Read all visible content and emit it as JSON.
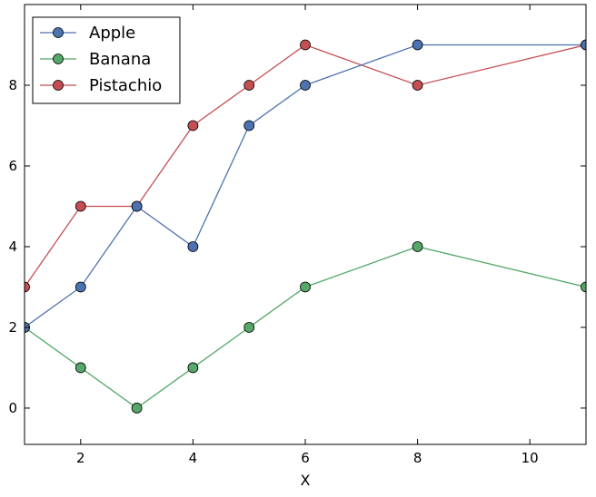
{
  "chart_data": {
    "type": "line",
    "title": "",
    "xlabel": "X",
    "ylabel": "",
    "xlim": [
      1,
      11
    ],
    "ylim": [
      -0.9,
      10
    ],
    "xticks": [
      2,
      4,
      6,
      8,
      10
    ],
    "yticks": [
      0,
      2,
      4,
      6,
      8
    ],
    "grid": false,
    "legend_position": "top-left",
    "x": [
      1,
      2,
      3,
      4,
      5,
      6,
      8,
      11
    ],
    "series": [
      {
        "name": "Apple",
        "color": "#4c72b0",
        "values": [
          2,
          3,
          5,
          4,
          7,
          8,
          9,
          9
        ]
      },
      {
        "name": "Banana",
        "color": "#55a868",
        "values": [
          2,
          1,
          0,
          1,
          2,
          3,
          4,
          3
        ]
      },
      {
        "name": "Pistachio",
        "color": "#c44e52",
        "values": [
          3,
          5,
          5,
          7,
          8,
          9,
          8,
          9
        ]
      }
    ]
  }
}
